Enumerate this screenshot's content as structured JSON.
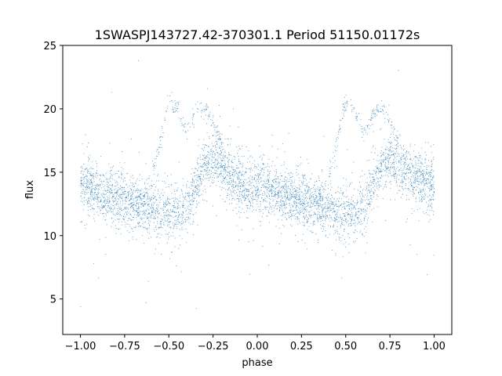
{
  "chart_data": {
    "type": "scatter",
    "title": "1SWASPJ143727.42-370301.1 Period 51150.01172s",
    "xlabel": "phase",
    "ylabel": "flux",
    "xlim": [
      -1.1,
      1.1
    ],
    "ylim": [
      2.2,
      25
    ],
    "x_ticks": [
      -1.0,
      -0.75,
      -0.5,
      -0.25,
      0.0,
      0.25,
      0.5,
      0.75,
      1.0
    ],
    "x_tick_labels": [
      "−1.00",
      "−0.75",
      "−0.50",
      "−0.25",
      "0.00",
      "0.25",
      "0.50",
      "0.75",
      "1.00"
    ],
    "y_ticks": [
      5,
      10,
      15,
      20,
      25
    ],
    "y_tick_labels": [
      "5",
      "10",
      "15",
      "20",
      "25"
    ],
    "grid": false,
    "legend": "none",
    "point_color": "#1f77b4",
    "series": [
      {
        "x": [
          -1.0,
          -0.9,
          -0.8,
          -0.7,
          -0.6,
          -0.55,
          -0.5,
          -0.45,
          -0.4,
          -0.35,
          -0.3,
          -0.25,
          -0.2,
          -0.15,
          -0.1,
          -0.05,
          0.0,
          0.1,
          0.2,
          0.3,
          0.4,
          0.45,
          0.5,
          0.55,
          0.6,
          0.65,
          0.7,
          0.75,
          0.8,
          0.9,
          1.0
        ],
        "y": [
          14.0,
          13.5,
          13.0,
          12.7,
          12.2,
          12.0,
          11.8,
          11.6,
          12.2,
          13.8,
          15.5,
          16.0,
          15.5,
          14.6,
          14.2,
          13.8,
          14.0,
          13.5,
          13.0,
          12.7,
          12.2,
          12.0,
          11.8,
          11.6,
          12.2,
          13.8,
          15.5,
          16.0,
          15.5,
          14.6,
          14.0
        ]
      },
      {
        "x": [
          -0.6,
          -0.55,
          -0.5,
          -0.45,
          -0.4,
          -0.35,
          -0.3,
          -0.25,
          -0.2,
          0.4,
          0.45,
          0.5,
          0.55,
          0.6,
          0.65,
          0.7,
          0.75,
          0.8
        ],
        "y": [
          14.5,
          17.5,
          20.5,
          20.0,
          18.0,
          19.5,
          20.2,
          19.0,
          17.0,
          14.5,
          17.5,
          20.5,
          20.0,
          18.0,
          19.5,
          20.2,
          19.0,
          17.0
        ]
      }
    ]
  }
}
